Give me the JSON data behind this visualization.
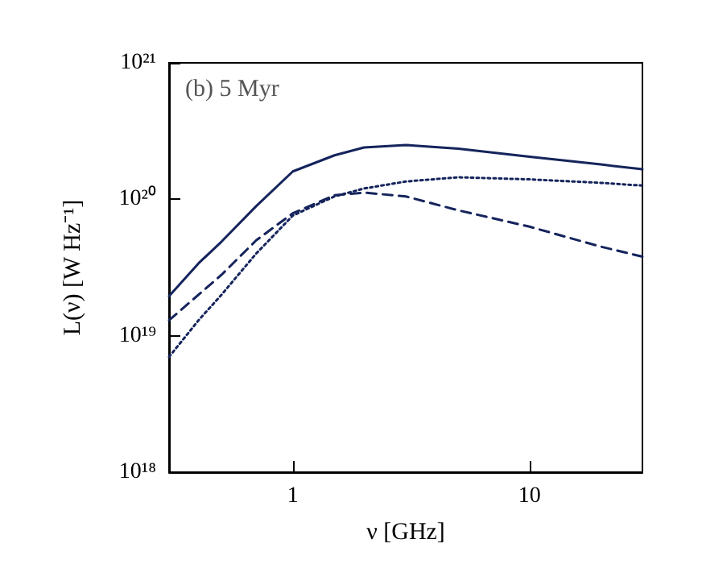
{
  "chart_data": {
    "type": "line",
    "xlabel": "ν [GHz]",
    "ylabel": "L(ν) [W Hz⁻¹]",
    "annotations": [
      "(b) 5 Myr"
    ],
    "log": "xy",
    "grid": false,
    "marker": "none",
    "x": [
      0.3,
      0.4,
      0.5,
      0.7,
      1,
      1.5,
      2,
      3,
      5,
      10,
      20,
      30
    ],
    "xlim": [
      0.3,
      30
    ],
    "xticks": [
      1,
      10
    ],
    "ylim": [
      1e+18,
      1e+21
    ],
    "yticks": [
      {
        "value": 1e+18,
        "label": "10¹⁸"
      },
      {
        "value": 1e+19,
        "label": "10¹⁹"
      },
      {
        "value": 1e+20,
        "label": "10²⁰"
      },
      {
        "value": 1e+21,
        "label": "10²¹"
      }
    ],
    "series": [
      {
        "color": "#15245c",
        "line_style": "solid",
        "values": [
          1.95e+19,
          3.4e+19,
          4.9e+19,
          8.9e+19,
          1.6e+20,
          2.1e+20,
          2.4e+20,
          2.5e+20,
          2.35e+20,
          2.05e+20,
          1.8e+20,
          1.66e+20
        ]
      },
      {
        "color": "#15245c",
        "line_style": "dashed",
        "values": [
          1.3e+19,
          2e+19,
          2.8e+19,
          5e+19,
          7.9e+19,
          1.07e+20,
          1.12e+20,
          1.05e+20,
          8.3e+19,
          6.3e+19,
          4.5e+19,
          3.8e+19
        ]
      },
      {
        "color": "#15245c",
        "line_style": "dotted",
        "values": [
          7e+18,
          1.3e+19,
          2e+19,
          4e+19,
          7.6e+19,
          1.05e+20,
          1.2e+20,
          1.35e+20,
          1.45e+20,
          1.4e+20,
          1.32e+20,
          1.26e+20
        ]
      }
    ]
  }
}
